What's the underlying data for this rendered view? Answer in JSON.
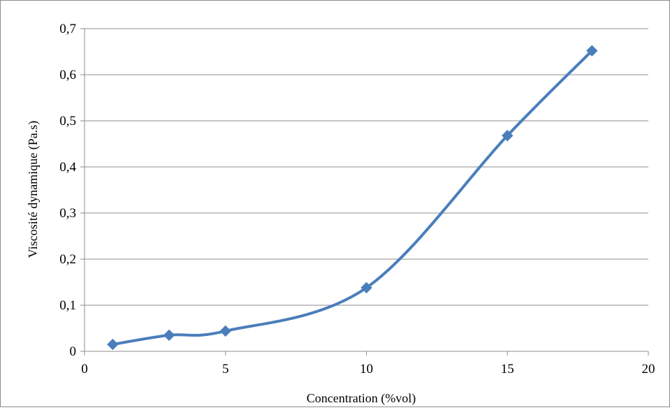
{
  "chart_data": {
    "type": "line",
    "title": "",
    "xlabel": "Concentration (%vol)",
    "ylabel": "Viscosité dynamique (Pa.s)",
    "xlim": [
      0,
      20
    ],
    "ylim": [
      0,
      0.7
    ],
    "x_ticks": [
      0,
      5,
      10,
      15,
      20
    ],
    "y_ticks": [
      0,
      0.1,
      0.2,
      0.3,
      0.4,
      0.5,
      0.6,
      0.7
    ],
    "y_tick_labels": [
      "0",
      "0,1",
      "0,2",
      "0,3",
      "0,4",
      "0,5",
      "0,6",
      "0,7"
    ],
    "x_tick_labels": [
      "0",
      "5",
      "10",
      "15",
      "20"
    ],
    "grid": "horizontal",
    "legend": "none",
    "series": [
      {
        "color": "#4a7ebb",
        "marker": "diamond",
        "smooth": true,
        "x": [
          1,
          3,
          5,
          10,
          15,
          18
        ],
        "y": [
          0.015,
          0.035,
          0.044,
          0.138,
          0.468,
          0.652
        ]
      }
    ]
  }
}
